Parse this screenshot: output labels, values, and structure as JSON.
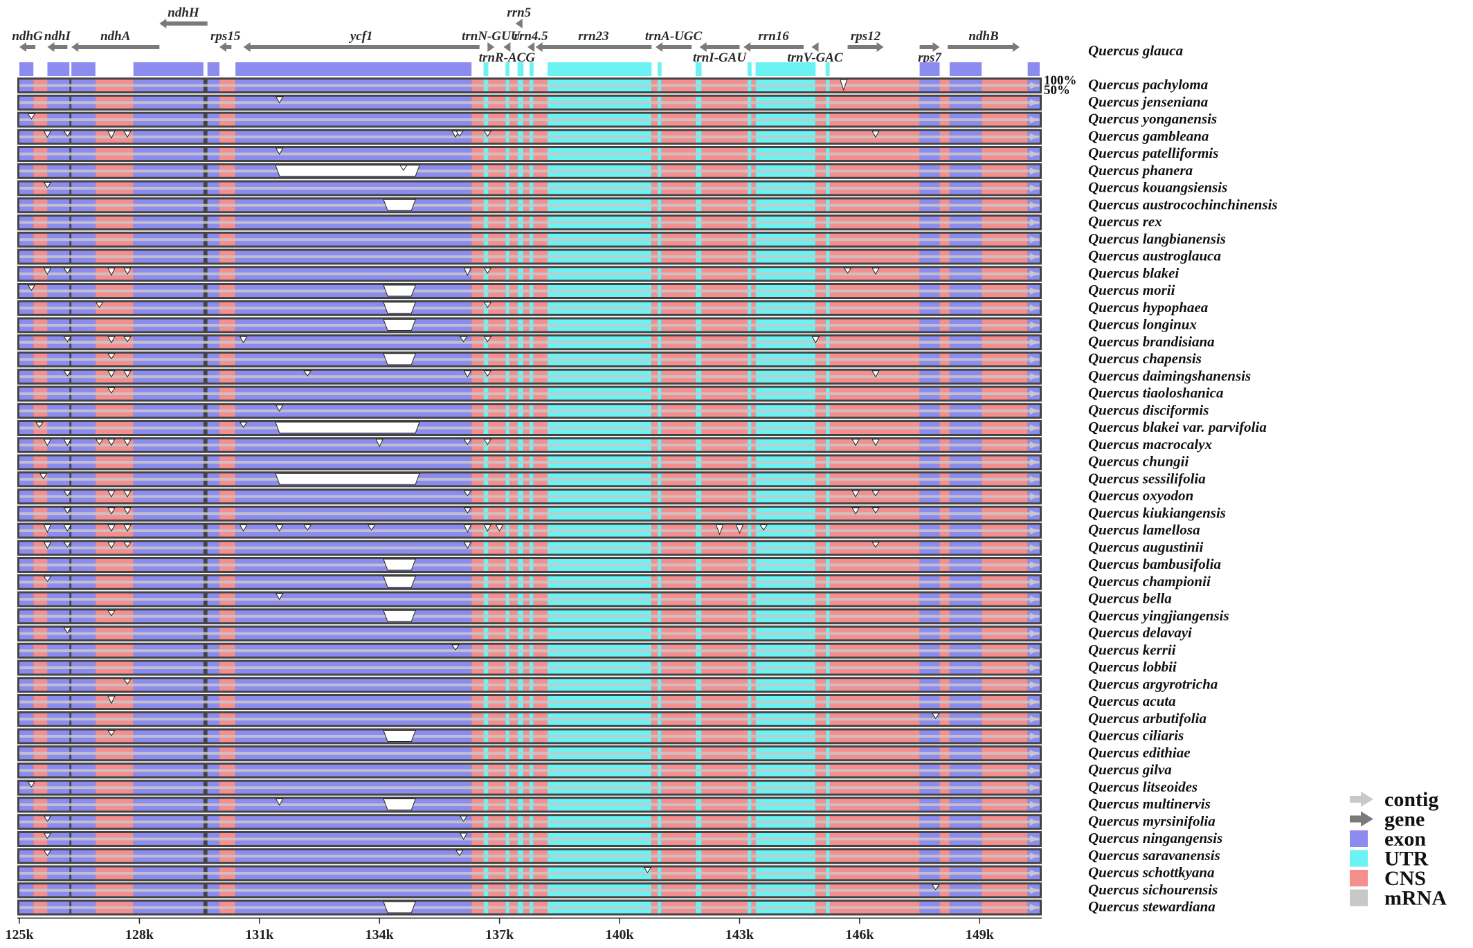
{
  "chart_data": {
    "type": "genome-alignment",
    "x_axis": {
      "start_k": 125,
      "end_k": 150.5,
      "ticks": [
        "125k",
        "128k",
        "131k",
        "134k",
        "137k",
        "140k",
        "143k",
        "146k",
        "149k"
      ],
      "tick_values": [
        125,
        128,
        131,
        134,
        137,
        140,
        143,
        146,
        149
      ]
    },
    "reference": "Quercus glauca",
    "scale_labels": [
      "100%",
      "50%"
    ],
    "genes": [
      {
        "name": "ndhG",
        "start": 125.0,
        "end": 125.4,
        "dir": "left",
        "row": "top"
      },
      {
        "name": "ndhI",
        "start": 125.7,
        "end": 126.2,
        "dir": "left",
        "row": "top"
      },
      {
        "name": "ndhA",
        "start": 126.3,
        "end": 128.5,
        "dir": "left",
        "row": "top"
      },
      {
        "name": "ndhH",
        "start": 128.5,
        "end": 129.7,
        "dir": "left",
        "row": "upper"
      },
      {
        "name": "rps15",
        "start": 130.0,
        "end": 130.3,
        "dir": "left",
        "row": "top"
      },
      {
        "name": "ycf1",
        "start": 130.6,
        "end": 136.5,
        "dir": "left",
        "row": "top"
      },
      {
        "name": "trnN-GUU",
        "start": 136.7,
        "end": 136.8,
        "dir": "right",
        "row": "top"
      },
      {
        "name": "trnR-ACG",
        "start": 137.1,
        "end": 137.2,
        "dir": "left",
        "row": "lower"
      },
      {
        "name": "rrn5",
        "start": 137.4,
        "end": 137.5,
        "dir": "left",
        "row": "upper"
      },
      {
        "name": "rrn4.5",
        "start": 137.7,
        "end": 137.8,
        "dir": "left",
        "row": "top"
      },
      {
        "name": "rrn23",
        "start": 137.9,
        "end": 140.8,
        "dir": "left",
        "row": "top"
      },
      {
        "name": "trnA-UGC",
        "start": 140.9,
        "end": 141.8,
        "dir": "left",
        "row": "top"
      },
      {
        "name": "trnI-GAU",
        "start": 142.0,
        "end": 143.0,
        "dir": "left",
        "row": "lower"
      },
      {
        "name": "rrn16",
        "start": 143.1,
        "end": 144.6,
        "dir": "left",
        "row": "top"
      },
      {
        "name": "trnV-GAC",
        "start": 144.8,
        "end": 144.9,
        "dir": "left",
        "row": "lower"
      },
      {
        "name": "rps12",
        "start": 145.7,
        "end": 146.6,
        "dir": "right",
        "row": "top"
      },
      {
        "name": "rps7",
        "start": 147.5,
        "end": 148.0,
        "dir": "right",
        "row": "lower"
      },
      {
        "name": "ndhB",
        "start": 148.2,
        "end": 150.0,
        "dir": "right",
        "row": "top"
      }
    ],
    "segments": [
      {
        "type": "exon",
        "start": 125.0,
        "end": 125.35
      },
      {
        "type": "CNS",
        "start": 125.35,
        "end": 125.7
      },
      {
        "type": "exon",
        "start": 125.7,
        "end": 126.25
      },
      {
        "type": "exon",
        "start": 126.3,
        "end": 126.9
      },
      {
        "type": "CNS",
        "start": 126.9,
        "end": 127.85
      },
      {
        "type": "exon",
        "start": 127.85,
        "end": 129.6
      },
      {
        "type": "exon",
        "start": 129.7,
        "end": 130.0
      },
      {
        "type": "CNS",
        "start": 130.0,
        "end": 130.4
      },
      {
        "type": "exon",
        "start": 130.4,
        "end": 136.3
      },
      {
        "type": "CNS",
        "start": 136.3,
        "end": 136.6
      },
      {
        "type": "UTR",
        "start": 136.6,
        "end": 136.72
      },
      {
        "type": "CNS",
        "start": 136.72,
        "end": 137.15
      },
      {
        "type": "UTR",
        "start": 137.15,
        "end": 137.25
      },
      {
        "type": "CNS",
        "start": 137.25,
        "end": 137.45
      },
      {
        "type": "UTR",
        "start": 137.45,
        "end": 137.6
      },
      {
        "type": "CNS",
        "start": 137.6,
        "end": 137.75
      },
      {
        "type": "UTR",
        "start": 137.75,
        "end": 137.85
      },
      {
        "type": "CNS",
        "start": 137.85,
        "end": 138.2
      },
      {
        "type": "UTR",
        "start": 138.2,
        "end": 140.8
      },
      {
        "type": "CNS",
        "start": 140.8,
        "end": 140.95
      },
      {
        "type": "UTR",
        "start": 140.95,
        "end": 141.05
      },
      {
        "type": "CNS",
        "start": 141.05,
        "end": 141.9
      },
      {
        "type": "UTR",
        "start": 141.9,
        "end": 142.05
      },
      {
        "type": "CNS",
        "start": 142.05,
        "end": 143.2
      },
      {
        "type": "UTR",
        "start": 143.2,
        "end": 143.3
      },
      {
        "type": "CNS",
        "start": 143.3,
        "end": 143.4
      },
      {
        "type": "UTR",
        "start": 143.4,
        "end": 144.9
      },
      {
        "type": "CNS",
        "start": 144.9,
        "end": 145.15
      },
      {
        "type": "UTR",
        "start": 145.15,
        "end": 145.25
      },
      {
        "type": "CNS",
        "start": 145.25,
        "end": 147.5
      },
      {
        "type": "exon",
        "start": 147.5,
        "end": 148.0
      },
      {
        "type": "CNS",
        "start": 148.0,
        "end": 148.25
      },
      {
        "type": "exon",
        "start": 148.25,
        "end": 149.05
      },
      {
        "type": "CNS",
        "start": 149.05,
        "end": 150.2
      },
      {
        "type": "exon",
        "start": 150.2,
        "end": 150.5
      }
    ],
    "colors": {
      "exon": "#8c8cf0",
      "UTR": "#6cf2f2",
      "CNS": "#f58f8f",
      "mRNA": "#c8c8c8",
      "contig": "#c8c8c8",
      "gene": "#7a7a7a",
      "row_dark": "#444444"
    },
    "species": [
      {
        "name": "Quercus pachyloma",
        "dips": [
          [
            145.6,
            0.8
          ]
        ]
      },
      {
        "name": "Quercus jenseniana",
        "dips": [
          [
            131.5,
            0.4
          ]
        ]
      },
      {
        "name": "Quercus yonganensis",
        "dips": [
          [
            125.3,
            0.3
          ]
        ]
      },
      {
        "name": "Quercus gambleana",
        "dips": [
          [
            125.7,
            0.4
          ],
          [
            126.2,
            0.3
          ],
          [
            127.3,
            0.5
          ],
          [
            127.7,
            0.4
          ],
          [
            135.9,
            0.4
          ],
          [
            136.0,
            0.3
          ],
          [
            136.7,
            0.3
          ],
          [
            146.4,
            0.4
          ]
        ]
      },
      {
        "name": "Quercus patelliformis",
        "dips": [
          [
            131.5,
            0.4
          ]
        ]
      },
      {
        "name": "Quercus phanera",
        "gaps": [
          [
            131.4,
            135.0
          ]
        ],
        "dips": [
          [
            134.6,
            0.3
          ]
        ]
      },
      {
        "name": "Quercus kouangsiensis",
        "dips": [
          [
            125.7,
            0.3
          ]
        ]
      },
      {
        "name": "Quercus austrocochinchinensis",
        "gaps": [
          [
            134.1,
            134.9
          ]
        ],
        "dips": []
      },
      {
        "name": "Quercus rex",
        "dips": []
      },
      {
        "name": "Quercus langbianensis",
        "dips": []
      },
      {
        "name": "Quercus austroglauca",
        "dips": []
      },
      {
        "name": "Quercus blakei",
        "dips": [
          [
            125.7,
            0.4
          ],
          [
            126.2,
            0.3
          ],
          [
            127.3,
            0.5
          ],
          [
            127.7,
            0.4
          ],
          [
            136.2,
            0.5
          ],
          [
            136.7,
            0.3
          ],
          [
            145.7,
            0.3
          ],
          [
            146.4,
            0.4
          ]
        ]
      },
      {
        "name": "Quercus morii",
        "gaps": [
          [
            134.1,
            134.9
          ]
        ],
        "dips": [
          [
            125.3,
            0.3
          ]
        ]
      },
      {
        "name": "Quercus hypophaea",
        "gaps": [
          [
            134.1,
            134.9
          ]
        ],
        "dips": [
          [
            127.0,
            0.3
          ],
          [
            136.7,
            0.3
          ]
        ]
      },
      {
        "name": "Quercus longinux",
        "gaps": [
          [
            134.1,
            134.9
          ]
        ],
        "dips": []
      },
      {
        "name": "Quercus brandisiana",
        "dips": [
          [
            126.2,
            0.3
          ],
          [
            127.3,
            0.4
          ],
          [
            127.7,
            0.3
          ],
          [
            130.6,
            0.4
          ],
          [
            136.1,
            0.3
          ],
          [
            136.7,
            0.3
          ],
          [
            144.9,
            0.4
          ]
        ]
      },
      {
        "name": "Quercus chapensis",
        "gaps": [
          [
            134.1,
            134.9
          ]
        ],
        "dips": [
          [
            127.3,
            0.3
          ]
        ]
      },
      {
        "name": "Quercus daimingshanensis",
        "dips": [
          [
            126.2,
            0.3
          ],
          [
            127.3,
            0.4
          ],
          [
            127.7,
            0.4
          ],
          [
            132.2,
            0.3
          ],
          [
            136.2,
            0.4
          ],
          [
            136.7,
            0.3
          ],
          [
            146.4,
            0.4
          ]
        ]
      },
      {
        "name": "Quercus tiaoloshanica",
        "dips": [
          [
            127.3,
            0.3
          ]
        ]
      },
      {
        "name": "Quercus disciformis",
        "dips": [
          [
            131.5,
            0.4
          ]
        ]
      },
      {
        "name": "Quercus blakei var. parvifolia",
        "gaps": [
          [
            131.4,
            135.0
          ]
        ],
        "dips": [
          [
            125.5,
            0.3
          ],
          [
            130.6,
            0.3
          ]
        ]
      },
      {
        "name": "Quercus macrocalyx",
        "dips": [
          [
            125.7,
            0.4
          ],
          [
            126.2,
            0.4
          ],
          [
            127.0,
            0.3
          ],
          [
            127.3,
            0.4
          ],
          [
            127.7,
            0.4
          ],
          [
            134.0,
            0.5
          ],
          [
            136.2,
            0.3
          ],
          [
            136.7,
            0.3
          ],
          [
            145.9,
            0.4
          ],
          [
            146.4,
            0.4
          ]
        ]
      },
      {
        "name": "Quercus chungii",
        "dips": []
      },
      {
        "name": "Quercus sessilifolia",
        "gaps": [
          [
            131.4,
            135.0
          ]
        ],
        "dips": [
          [
            125.6,
            0.3
          ]
        ]
      },
      {
        "name": "Quercus oxyodon",
        "dips": [
          [
            126.2,
            0.3
          ],
          [
            127.3,
            0.4
          ],
          [
            127.7,
            0.4
          ],
          [
            136.2,
            0.3
          ],
          [
            145.9,
            0.4
          ],
          [
            146.4,
            0.3
          ]
        ]
      },
      {
        "name": "Quercus kiukiangensis",
        "dips": [
          [
            126.2,
            0.3
          ],
          [
            127.3,
            0.4
          ],
          [
            127.7,
            0.4
          ],
          [
            136.2,
            0.3
          ],
          [
            145.9,
            0.4
          ],
          [
            146.4,
            0.3
          ]
        ]
      },
      {
        "name": "Quercus lamellosa",
        "dips": [
          [
            125.7,
            0.5
          ],
          [
            126.2,
            0.4
          ],
          [
            127.3,
            0.4
          ],
          [
            127.7,
            0.4
          ],
          [
            130.6,
            0.4
          ],
          [
            131.5,
            0.4
          ],
          [
            132.2,
            0.3
          ],
          [
            133.8,
            0.3
          ],
          [
            136.2,
            0.5
          ],
          [
            136.7,
            0.4
          ],
          [
            137.0,
            0.4
          ],
          [
            142.5,
            0.7
          ],
          [
            143.0,
            0.6
          ],
          [
            143.6,
            0.3
          ]
        ]
      },
      {
        "name": "Quercus augustinii",
        "dips": [
          [
            125.7,
            0.4
          ],
          [
            126.2,
            0.3
          ],
          [
            127.3,
            0.4
          ],
          [
            127.7,
            0.3
          ],
          [
            136.2,
            0.4
          ],
          [
            146.4,
            0.3
          ]
        ]
      },
      {
        "name": "Quercus bambusifolia",
        "gaps": [
          [
            134.1,
            134.9
          ]
        ],
        "dips": []
      },
      {
        "name": "Quercus championii",
        "gaps": [
          [
            134.1,
            134.9
          ]
        ],
        "dips": [
          [
            125.7,
            0.3
          ]
        ]
      },
      {
        "name": "Quercus bella",
        "dips": [
          [
            131.5,
            0.4
          ]
        ]
      },
      {
        "name": "Quercus yingjiangensis",
        "gaps": [
          [
            134.1,
            134.9
          ]
        ],
        "dips": [
          [
            127.3,
            0.3
          ]
        ]
      },
      {
        "name": "Quercus delavayi",
        "dips": [
          [
            126.2,
            0.3
          ]
        ]
      },
      {
        "name": "Quercus kerrii",
        "dips": [
          [
            135.9,
            0.3
          ]
        ]
      },
      {
        "name": "Quercus lobbii",
        "dips": []
      },
      {
        "name": "Quercus argyrotricha",
        "dips": [
          [
            127.7,
            0.3
          ]
        ]
      },
      {
        "name": "Quercus acuta",
        "dips": [
          [
            127.3,
            0.5
          ]
        ]
      },
      {
        "name": "Quercus arbutifolia",
        "dips": [
          [
            147.9,
            0.3
          ]
        ]
      },
      {
        "name": "Quercus ciliaris",
        "gaps": [
          [
            134.1,
            134.9
          ]
        ],
        "dips": [
          [
            127.3,
            0.3
          ]
        ]
      },
      {
        "name": "Quercus edithiae",
        "dips": []
      },
      {
        "name": "Quercus gilva",
        "dips": []
      },
      {
        "name": "Quercus litseoides",
        "dips": [
          [
            125.3,
            0.3
          ]
        ]
      },
      {
        "name": "Quercus multinervis",
        "gaps": [
          [
            134.1,
            134.9
          ]
        ],
        "dips": [
          [
            131.5,
            0.4
          ]
        ]
      },
      {
        "name": "Quercus myrsinifolia",
        "dips": [
          [
            125.7,
            0.3
          ],
          [
            136.1,
            0.3
          ]
        ]
      },
      {
        "name": "Quercus ningangensis",
        "dips": [
          [
            125.7,
            0.3
          ],
          [
            136.1,
            0.4
          ]
        ]
      },
      {
        "name": "Quercus saravanensis",
        "dips": [
          [
            125.7,
            0.3
          ],
          [
            136.0,
            0.3
          ]
        ]
      },
      {
        "name": "Quercus schottkyana",
        "dips": [
          [
            140.7,
            0.3
          ]
        ]
      },
      {
        "name": "Quercus sichourensis",
        "dips": [
          [
            147.9,
            0.3
          ]
        ]
      },
      {
        "name": "Quercus stewardiana",
        "gaps": [
          [
            134.1,
            134.9
          ]
        ],
        "dips": []
      }
    ],
    "legend": [
      {
        "label": "contig",
        "symbol": "arrow",
        "color": "#c8c8c8"
      },
      {
        "label": "gene",
        "symbol": "arrow",
        "color": "#7a7a7a"
      },
      {
        "label": "exon",
        "symbol": "box",
        "color": "#8c8cf0"
      },
      {
        "label": "UTR",
        "symbol": "box",
        "color": "#6cf2f2"
      },
      {
        "label": "CNS",
        "symbol": "box",
        "color": "#f58f8f"
      },
      {
        "label": "mRNA",
        "symbol": "box",
        "color": "#c8c8c8"
      }
    ]
  }
}
